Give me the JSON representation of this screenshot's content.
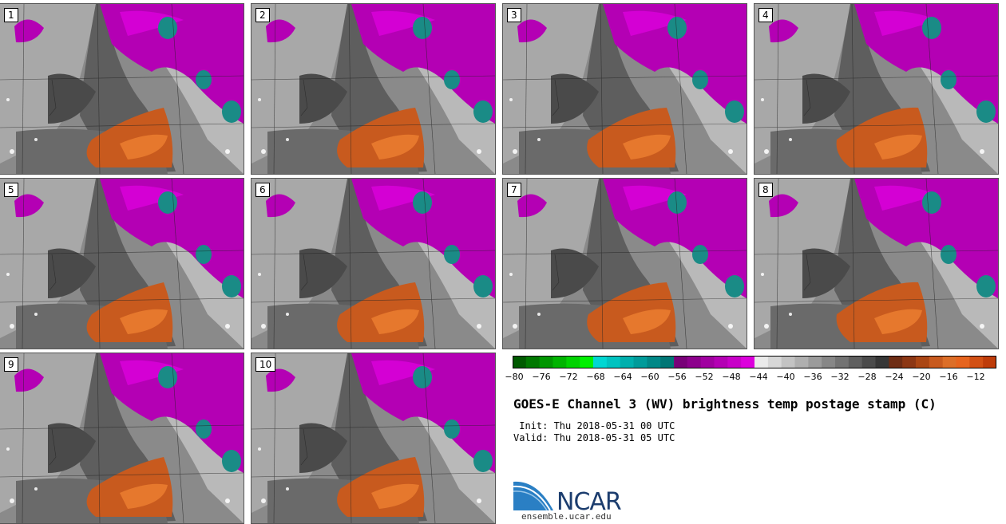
{
  "stamps": [
    {
      "label": "1"
    },
    {
      "label": "2"
    },
    {
      "label": "3"
    },
    {
      "label": "4"
    },
    {
      "label": "5"
    },
    {
      "label": "6"
    },
    {
      "label": "7"
    },
    {
      "label": "8"
    },
    {
      "label": "9"
    },
    {
      "label": "10"
    }
  ],
  "colorbar": {
    "ticks": [
      "−80",
      "−76",
      "−72",
      "−68",
      "−64",
      "−60",
      "−56",
      "−52",
      "−48",
      "−44",
      "−40",
      "−36",
      "−32",
      "−28",
      "−24",
      "−20",
      "−16",
      "−12"
    ],
    "colors": [
      "#005a00",
      "#007800",
      "#009600",
      "#00b400",
      "#00d200",
      "#00f000",
      "#00d7d2",
      "#00c3c0",
      "#00afad",
      "#009b9a",
      "#008887",
      "#007675",
      "#780078",
      "#8c008c",
      "#a000a0",
      "#b400b4",
      "#c800c8",
      "#dc00dc",
      "#ebebeb",
      "#d7d7d7",
      "#c3c3c3",
      "#afafaf",
      "#9b9b9b",
      "#878787",
      "#737373",
      "#5f5f5f",
      "#4b4b4b",
      "#373737",
      "#6e2d14",
      "#8c3714",
      "#aa4614",
      "#c85a1e",
      "#dc6e28",
      "#e6641e",
      "#d25014",
      "#be3c0a"
    ]
  },
  "title": "GOES-E Channel 3 (WV) brightness temp postage stamp (C)",
  "init": " Init: Thu 2018-05-31 00 UTC",
  "valid": "Valid: Thu 2018-05-31 05 UTC",
  "logo": {
    "text": "NCAR",
    "url_text": "ensemble.ucar.edu"
  }
}
